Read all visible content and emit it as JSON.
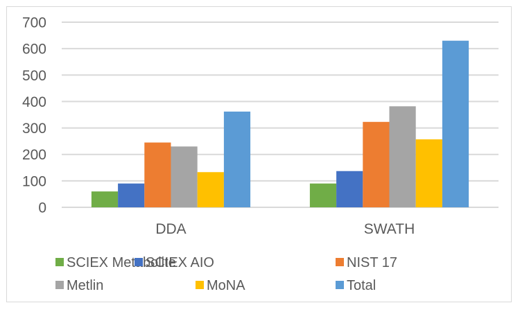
{
  "chart_data": {
    "type": "bar",
    "title": "",
    "xlabel": "",
    "ylabel": "",
    "categories": [
      "DDA",
      "SWATH"
    ],
    "ylim": [
      0,
      700
    ],
    "yticks": [
      0,
      100,
      200,
      300,
      400,
      500,
      600,
      700
    ],
    "ytick_labels": [
      "0",
      "100",
      "200",
      "300",
      "400",
      "500",
      "600",
      "700"
    ],
    "grid": true,
    "legend_position": "bottom",
    "series": [
      {
        "name": "SCIEX Metabolite",
        "color": "#70ad47",
        "values": [
          60,
          90
        ]
      },
      {
        "name": "SCIEX AIO",
        "color": "#4472c4",
        "values": [
          90,
          137
        ]
      },
      {
        "name": "NIST 17",
        "color": "#ed7d31",
        "values": [
          245,
          323
        ]
      },
      {
        "name": "Metlin",
        "color": "#a5a5a5",
        "values": [
          230,
          382
        ]
      },
      {
        "name": "MoNA",
        "color": "#ffc000",
        "values": [
          133,
          257
        ]
      },
      {
        "name": "Total",
        "color": "#5b9bd5",
        "values": [
          362,
          630
        ]
      }
    ]
  }
}
